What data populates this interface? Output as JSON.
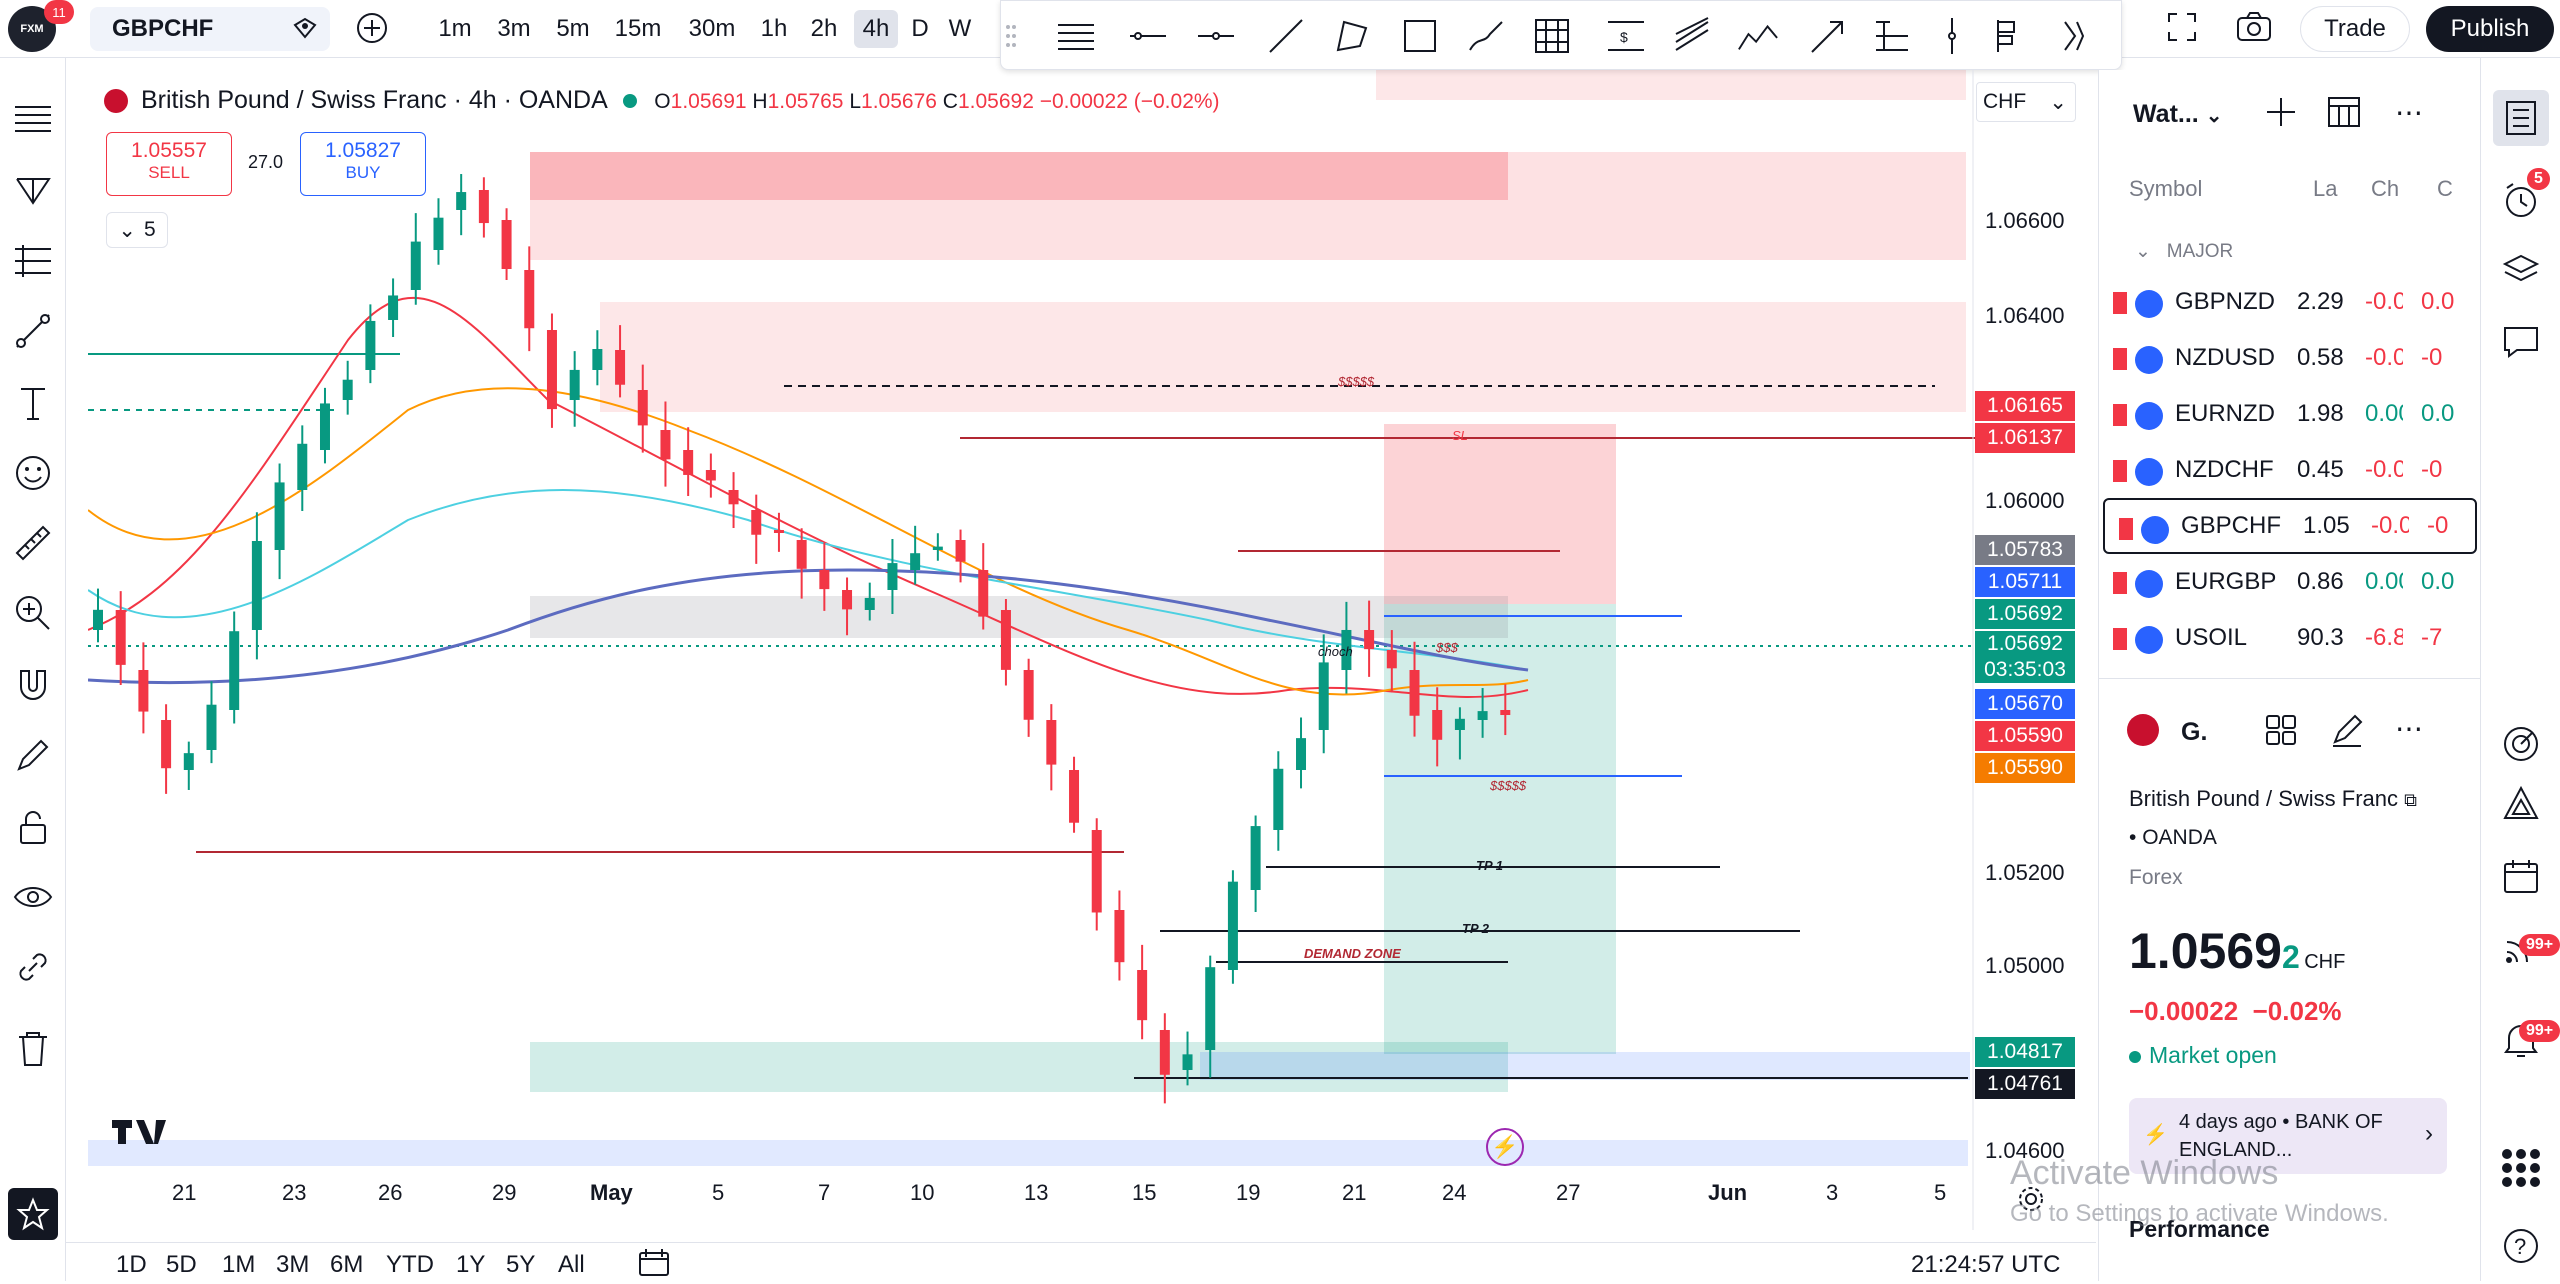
{
  "topbar": {
    "logo_text": "FXM",
    "logo_badge": "11",
    "symbol": "GBPCHF",
    "timeframes": [
      "1m",
      "3m",
      "5m",
      "15m",
      "30m",
      "1h",
      "2h",
      "4h",
      "D",
      "W"
    ],
    "active_timeframe": "4h",
    "trade_label": "Trade",
    "publish_label": "Publish"
  },
  "legend": {
    "title": "British Pound / Swiss Franc · 4h · OANDA",
    "open_label": "O",
    "open": "1.05691",
    "high_label": "H",
    "high": "1.05765",
    "low_label": "L",
    "low": "1.05676",
    "close_label": "C",
    "close": "1.05692",
    "change": "−0.00022 (−0.02%)",
    "sell_price": "1.05557",
    "sell_label": "SELL",
    "spread": "27.0",
    "buy_price": "1.05827",
    "buy_label": "BUY",
    "indicators_count": "5",
    "currency": "CHF"
  },
  "price_axis": {
    "labels": [
      "1.06600",
      "1.06400",
      "1.06000",
      "1.05200",
      "1.05000",
      "1.04600"
    ],
    "tags": [
      {
        "value": "1.06165",
        "color": "#f23645"
      },
      {
        "value": "1.06137",
        "color": "#f23645"
      },
      {
        "value": "1.05783",
        "color": "#787b86"
      },
      {
        "value": "1.05711",
        "color": "#2962ff"
      },
      {
        "value": "1.05692",
        "color": "#089981"
      },
      {
        "value": "1.05692",
        "color": "#089981"
      },
      {
        "value": "03:35:03",
        "color": "#089981"
      },
      {
        "value": "1.05670",
        "color": "#2962ff"
      },
      {
        "value": "1.05590",
        "color": "#f23645"
      },
      {
        "value": "1.05590",
        "color": "#f57c00"
      },
      {
        "value": "1.04817",
        "color": "#089981"
      },
      {
        "value": "1.04761",
        "color": "#131722"
      }
    ]
  },
  "time_axis": [
    "21",
    "23",
    "26",
    "29",
    "May",
    "5",
    "7",
    "10",
    "13",
    "15",
    "19",
    "21",
    "24",
    "27",
    "Jun",
    "3",
    "5"
  ],
  "annotations": {
    "sl": "SL",
    "tp1": "TP 1",
    "tp2": "TP 2",
    "demand_zone": "DEMAND ZONE",
    "choch": "choch",
    "liq_top": "$$$$$",
    "liq_mid": "$$$",
    "liq_bottom": "$$$$$"
  },
  "bottombar": {
    "ranges": [
      "1D",
      "5D",
      "1M",
      "3M",
      "6M",
      "YTD",
      "1Y",
      "5Y",
      "All"
    ],
    "time": "21:24:57 UTC"
  },
  "watchlist": {
    "title": "Wat...",
    "col_symbol": "Symbol",
    "col_last": "La",
    "col_chg": "Ch",
    "col_chgp": "C",
    "section": "MAJOR",
    "rows": [
      {
        "symbol": "GBPNZD",
        "last": "2.29",
        "chg": "-0.0",
        "chgp": "0.0",
        "dir": "neg"
      },
      {
        "symbol": "NZDUSD",
        "last": "0.58",
        "chg": "-0.0",
        "chgp": "-0",
        "dir": "neg"
      },
      {
        "symbol": "EURNZD",
        "last": "1.98",
        "chg": "0.00",
        "chgp": "0.0",
        "dir": "pos"
      },
      {
        "symbol": "NZDCHF",
        "last": "0.45",
        "chg": "-0.0",
        "chgp": "-0",
        "dir": "neg"
      },
      {
        "symbol": "GBPCHF",
        "last": "1.05",
        "chg": "-0.0",
        "chgp": "-0",
        "dir": "neg"
      },
      {
        "symbol": "EURGBP",
        "last": "0.86",
        "chg": "0.00",
        "chgp": "0.0",
        "dir": "pos"
      },
      {
        "symbol": "USOIL",
        "last": "90.3",
        "chg": "-6.8",
        "chgp": "-7",
        "dir": "neg"
      }
    ]
  },
  "details": {
    "symbol_short": "G.",
    "name": "British Pound / Swiss Franc",
    "exchange": "OANDA",
    "type": "Forex",
    "price_main": "1.0569",
    "price_small": "2",
    "currency": "CHF",
    "change": "−0.00022",
    "change_pct": "−0.02%",
    "market_status": "Market open",
    "news_time": "4 days ago",
    "news_text": "BANK OF ENGLAND...",
    "performance": "Performance"
  },
  "right_badges": {
    "alerts": "5",
    "ideas": "99+",
    "streams": "99+"
  },
  "watermark": {
    "line1": "Activate Windows",
    "line2": "Go to Settings to activate Windows."
  }
}
